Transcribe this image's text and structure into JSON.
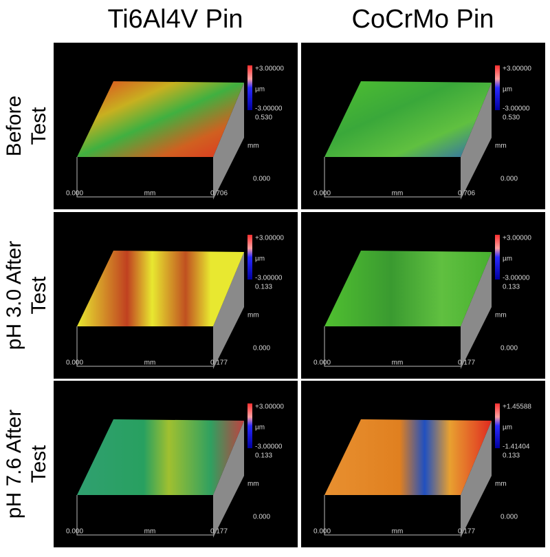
{
  "columns": [
    "Ti6Al4V Pin",
    "CoCrMo Pin"
  ],
  "rows": [
    {
      "label": [
        "Before",
        "Test"
      ]
    },
    {
      "label": [
        "pH 3.0 After",
        "Test"
      ]
    },
    {
      "label": [
        "pH 7.6 After",
        "Test"
      ]
    }
  ],
  "panels": [
    [
      {
        "scale_max": "+3.00000",
        "unit": "µm",
        "scale_min": "-3.00000",
        "depth": "0.530",
        "depth_unit": "mm",
        "depth_zero": "0.000",
        "x_start": "0.000",
        "x_unit": "mm",
        "x_end": "0.706"
      },
      {
        "scale_max": "+3.00000",
        "unit": "µm",
        "scale_min": "-3.00000",
        "depth": "0.530",
        "depth_unit": "mm",
        "depth_zero": "0.000",
        "x_start": "0.000",
        "x_unit": "mm",
        "x_end": "0.706"
      }
    ],
    [
      {
        "scale_max": "+3.00000",
        "unit": "µm",
        "scale_min": "-3.00000",
        "depth": "0.133",
        "depth_unit": "mm",
        "depth_zero": "0.000",
        "x_start": "0.000",
        "x_unit": "mm",
        "x_end": "0.177"
      },
      {
        "scale_max": "+3.00000",
        "unit": "µm",
        "scale_min": "-3.00000",
        "depth": "0.133",
        "depth_unit": "mm",
        "depth_zero": "0.000",
        "x_start": "0.000",
        "x_unit": "mm",
        "x_end": "0.177"
      }
    ],
    [
      {
        "scale_max": "+3.00000",
        "unit": "µm",
        "scale_min": "-3.00000",
        "depth": "0.133",
        "depth_unit": "mm",
        "depth_zero": "0.000",
        "x_start": "0.000",
        "x_unit": "mm",
        "x_end": "0.177"
      },
      {
        "scale_max": "+1.45588",
        "unit": "µm",
        "scale_min": "-1.41404",
        "depth": "0.133",
        "depth_unit": "mm",
        "depth_zero": "0.000",
        "x_start": "0.000",
        "x_unit": "mm",
        "x_end": "0.177"
      }
    ]
  ]
}
